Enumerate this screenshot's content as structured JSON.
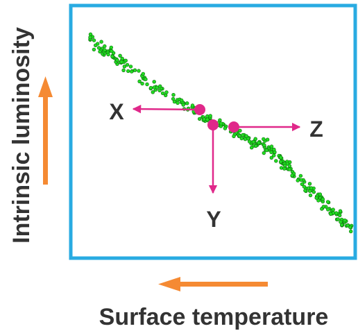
{
  "labels": {
    "y_axis": "Intrinsic luminosity",
    "x_axis": "Surface temperature"
  },
  "points": [
    {
      "id": "X",
      "label": "X",
      "direction": "left"
    },
    {
      "id": "Y",
      "label": "Y",
      "direction": "down"
    },
    {
      "id": "Z",
      "label": "Z",
      "direction": "right"
    }
  ],
  "axis_direction": {
    "luminosity": "increases upward",
    "temperature": "increases to the left"
  },
  "colors": {
    "frame": "#29abe2",
    "stars": "#22dd22",
    "star_outline": "#0b6b0b",
    "markers": "#e0288a",
    "axis_arrows": "#f58a33",
    "text": "#333333"
  }
}
